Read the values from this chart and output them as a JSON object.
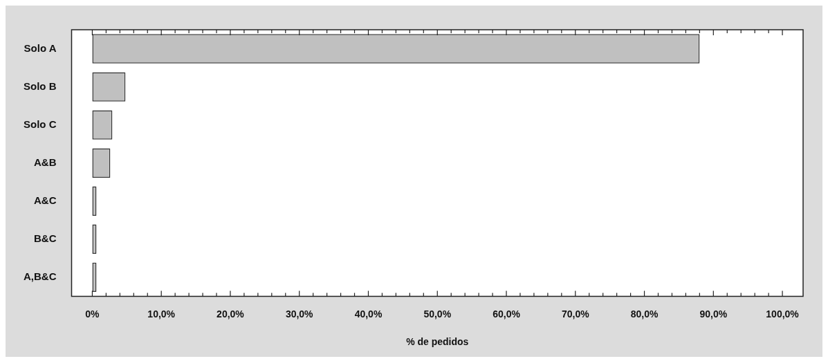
{
  "chart_data": {
    "type": "bar",
    "orientation": "horizontal",
    "xlabel": "% de pedidos",
    "categories": [
      "Solo A",
      "Solo B",
      "Solo C",
      "A&B",
      "A&C",
      "B&C",
      "A,B&C"
    ],
    "values": [
      88.0,
      4.8,
      2.9,
      2.6,
      0.6,
      0.6,
      0.6
    ],
    "color": "#c0c0c0",
    "xlim": [
      -3,
      103
    ],
    "xticks": [
      {
        "value": 0,
        "label": "0%"
      },
      {
        "value": 2,
        "label": null
      },
      {
        "value": 4,
        "label": null
      },
      {
        "value": 6,
        "label": null
      },
      {
        "value": 8,
        "label": null
      },
      {
        "value": 10,
        "label": "10,0%"
      },
      {
        "value": 12,
        "label": null
      },
      {
        "value": 14,
        "label": null
      },
      {
        "value": 16,
        "label": null
      },
      {
        "value": 18,
        "label": null
      },
      {
        "value": 20,
        "label": "20,0%"
      },
      {
        "value": 22,
        "label": null
      },
      {
        "value": 24,
        "label": null
      },
      {
        "value": 26,
        "label": null
      },
      {
        "value": 28,
        "label": null
      },
      {
        "value": 30,
        "label": "30,0%"
      },
      {
        "value": 32,
        "label": null
      },
      {
        "value": 34,
        "label": null
      },
      {
        "value": 36,
        "label": null
      },
      {
        "value": 38,
        "label": null
      },
      {
        "value": 40,
        "label": "40,0%"
      },
      {
        "value": 42,
        "label": null
      },
      {
        "value": 44,
        "label": null
      },
      {
        "value": 46,
        "label": null
      },
      {
        "value": 48,
        "label": null
      },
      {
        "value": 50,
        "label": "50,0%"
      },
      {
        "value": 52,
        "label": null
      },
      {
        "value": 54,
        "label": null
      },
      {
        "value": 56,
        "label": null
      },
      {
        "value": 58,
        "label": null
      },
      {
        "value": 60,
        "label": "60,0%"
      },
      {
        "value": 62,
        "label": null
      },
      {
        "value": 64,
        "label": null
      },
      {
        "value": 66,
        "label": null
      },
      {
        "value": 68,
        "label": null
      },
      {
        "value": 70,
        "label": "70,0%"
      },
      {
        "value": 72,
        "label": null
      },
      {
        "value": 74,
        "label": null
      },
      {
        "value": 76,
        "label": null
      },
      {
        "value": 78,
        "label": null
      },
      {
        "value": 80,
        "label": "80,0%"
      },
      {
        "value": 82,
        "label": null
      },
      {
        "value": 84,
        "label": null
      },
      {
        "value": 86,
        "label": null
      },
      {
        "value": 88,
        "label": null
      },
      {
        "value": 90,
        "label": "90,0%"
      },
      {
        "value": 92,
        "label": null
      },
      {
        "value": 94,
        "label": null
      },
      {
        "value": 96,
        "label": null
      },
      {
        "value": 98,
        "label": null
      },
      {
        "value": 100,
        "label": "100,0%"
      }
    ]
  }
}
